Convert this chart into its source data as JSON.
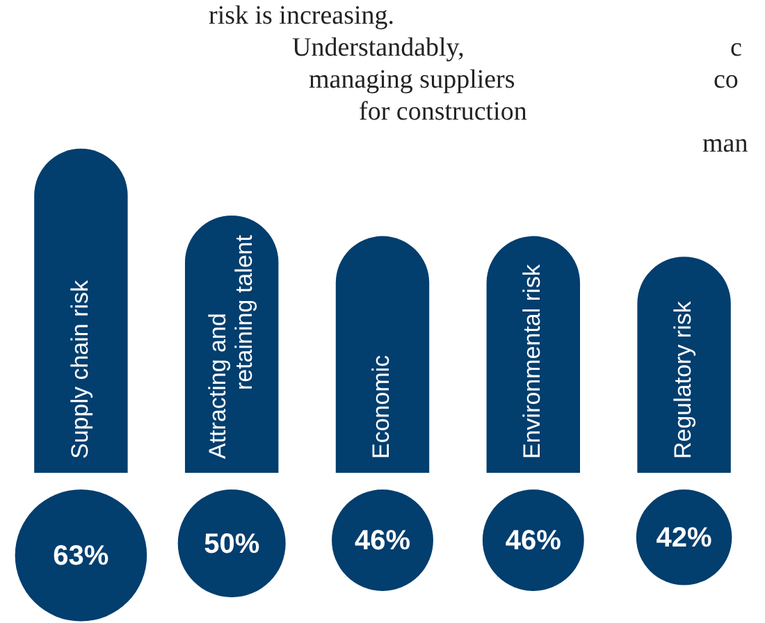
{
  "chart_data": {
    "type": "bar",
    "categories": [
      "Supply chain risk",
      "Attracting and retaining talent",
      "Economic",
      "Environmental risk",
      "Regulatory risk"
    ],
    "values": [
      63,
      50,
      46,
      46,
      42
    ],
    "value_labels": [
      "63%",
      "50%",
      "46%",
      "46%",
      "42%"
    ],
    "color": "#023e6e",
    "annotations": [
      "risk is increasing.\nUnderstandably,\nmanaging suppliers\nfor construction",
      "c\nco\n\nman"
    ]
  }
}
